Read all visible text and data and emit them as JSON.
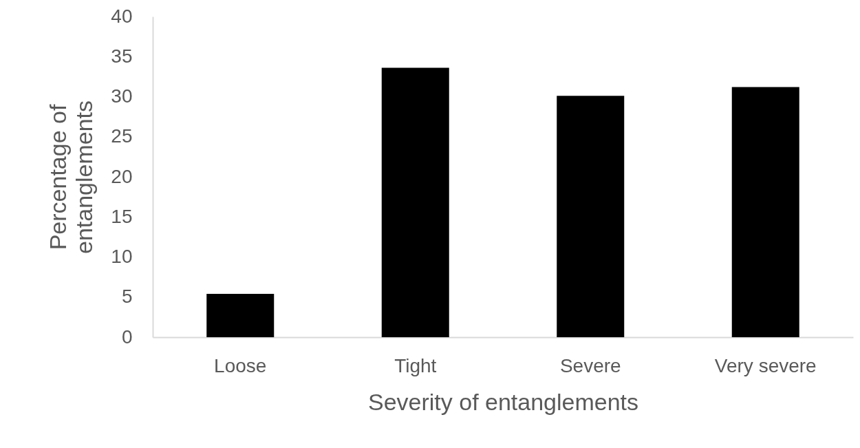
{
  "chart_data": {
    "type": "bar",
    "xlabel": "Severity of entanglements",
    "ylabel": "Percentage of entanglements",
    "categories": [
      "Loose",
      "Tight",
      "Severe",
      "Very severe"
    ],
    "values": [
      5.4,
      33.6,
      30.1,
      31.2
    ],
    "color": "#000000",
    "ylim": [
      0,
      40
    ],
    "yticks": [
      0,
      5,
      10,
      15,
      20,
      25,
      30,
      35,
      40
    ],
    "grid": false
  }
}
